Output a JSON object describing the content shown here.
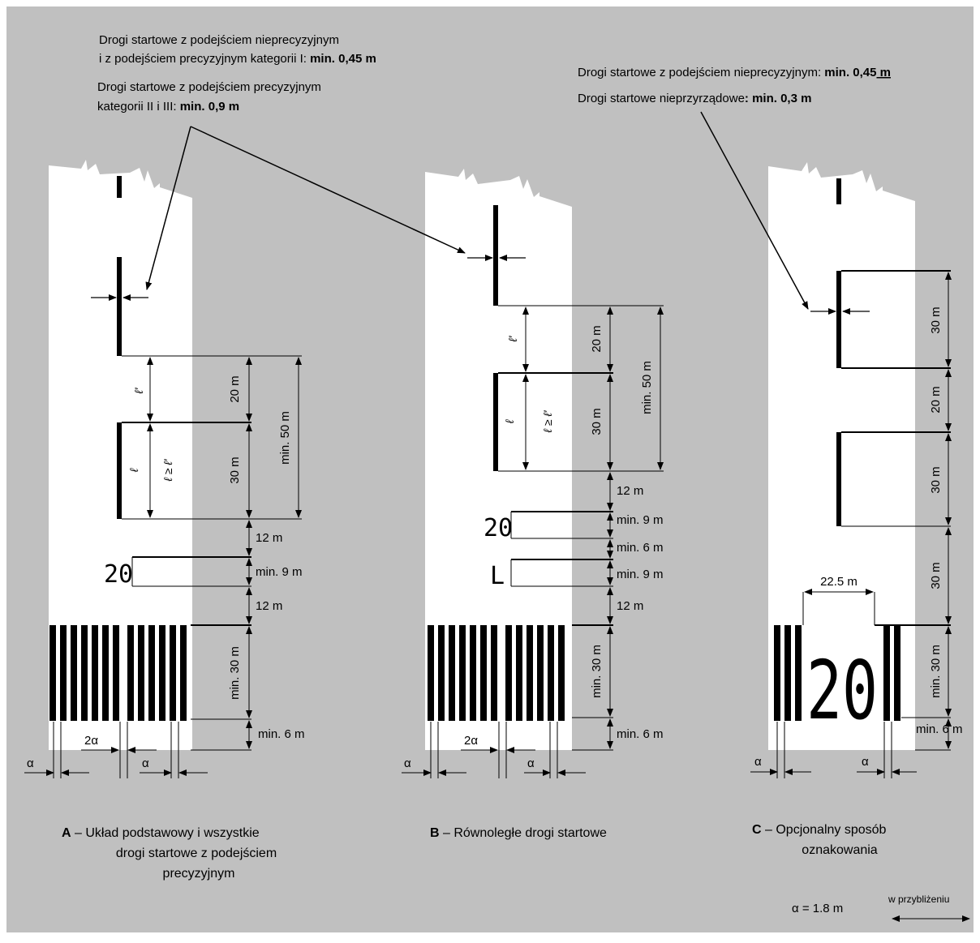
{
  "notes": {
    "left": {
      "line1": "Drogi startowe z podejściem nieprecyzyjnym",
      "line2a": " i z podejściem precyzyjnym kategorii I: ",
      "line2b": "min. 0,45 m",
      "line3": "Drogi startowe z podejściem precyzyjnym",
      "line4a": "kategorii II i III:  ",
      "line4b": "min. 0,9 m"
    },
    "right": {
      "line1a": "Drogi startowe z podejściem nieprecyzyjnym: ",
      "line1b": "min. 0,45",
      "line1c": " m",
      "line2a": "Drogi startowe nieprzyrządowe",
      "line2b": ": min. 0,3 m"
    }
  },
  "panel_a": {
    "d_20": "20 m",
    "d_30": "30 m",
    "d_min50": "min. 50 m",
    "d_12a": "12 m",
    "d_min9": "min. 9 m",
    "d_12b": "12 m",
    "d_min30": "min. 30 m",
    "d_min6": "min. 6 m",
    "designator": "20",
    "l_prime": "ℓ′",
    "l": "ℓ",
    "l_ge": "ℓ ≥ ℓ′",
    "alpha1": "α",
    "two_alpha": "2α",
    "alpha2": "α",
    "caption_letter": "A",
    "caption_line1": " – Układ podstawowy i wszystkie",
    "caption_line2": "drogi startowe z podejściem",
    "caption_line3": "precyzyjnym"
  },
  "panel_b": {
    "d_20": "20 m",
    "d_30": "30 m",
    "d_min50": "min. 50 m",
    "d_12a": "12 m",
    "d_min9a": "min. 9 m",
    "d_min6a": "min. 6 m",
    "d_min9b": "min. 9 m",
    "d_12b": "12 m",
    "d_min30": "min. 30 m",
    "d_min6b": "min. 6 m",
    "designator": "20",
    "suffix": "L",
    "l_prime": "ℓ′",
    "l": "ℓ",
    "l_ge": "ℓ ≥ ℓ′",
    "alpha1": "α",
    "two_alpha": "2α",
    "alpha2": "α",
    "caption_letter": "B",
    "caption_line1": " – Równoległe drogi startowe"
  },
  "panel_c": {
    "d_30a": "30 m",
    "d_20": "20 m",
    "d_30b": "30 m",
    "d_30c": "30 m",
    "d_min30": "min. 30 m",
    "d_min6": "min. 6 m",
    "d_225": "22.5 m",
    "designator": "20",
    "alpha1": "α",
    "alpha2": "α",
    "caption_letter": "C",
    "caption_line1": " – Opcjonalny sposób",
    "caption_line2": "oznakowania"
  },
  "footer": {
    "alpha_eq": "α  = 1.8 m",
    "approx": "w przybliżeniu"
  },
  "colors": {
    "background": "#c0c0c0",
    "runway": "#ffffff",
    "marking": "#000000"
  }
}
